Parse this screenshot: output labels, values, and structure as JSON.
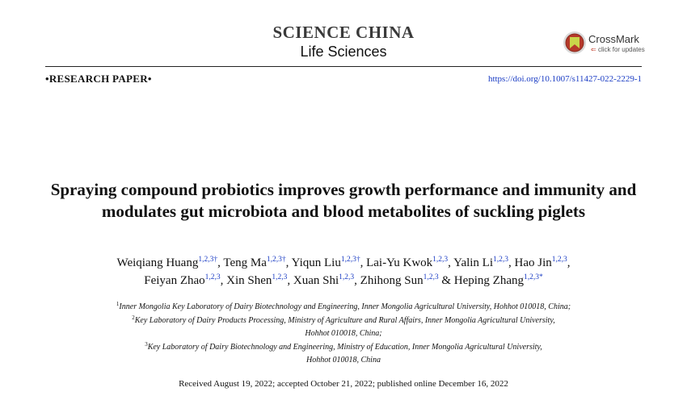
{
  "journal": {
    "name": "SCIENCE CHINA",
    "subtitle": "Life Sciences"
  },
  "crossmark": {
    "title": "CrossMark",
    "subtitle": "click for updates"
  },
  "paper_type": "•RESEARCH PAPER•",
  "doi": "https://doi.org/10.1007/s11427-022-2229-1",
  "title": "Spraying compound probiotics improves growth performance and immunity and modulates gut microbiota and blood metabolites of suckling piglets",
  "authors": [
    {
      "name": "Weiqiang Huang",
      "sup": "1,2,3†",
      "sep": ", "
    },
    {
      "name": "Teng Ma",
      "sup": "1,2,3†",
      "sep": ", "
    },
    {
      "name": "Yiqun Liu",
      "sup": "1,2,3†",
      "sep": ", "
    },
    {
      "name": "Lai-Yu Kwok",
      "sup": "1,2,3",
      "sep": ", "
    },
    {
      "name": "Yalin Li",
      "sup": "1,2,3",
      "sep": ", "
    },
    {
      "name": "Hao Jin",
      "sup": "1,2,3",
      "sep": ","
    },
    {
      "name": "Feiyan Zhao",
      "sup": "1,2,3",
      "sep": ", "
    },
    {
      "name": "Xin Shen",
      "sup": "1,2,3",
      "sep": ", "
    },
    {
      "name": "Xuan Shi",
      "sup": "1,2,3",
      "sep": ", "
    },
    {
      "name": "Zhihong Sun",
      "sup": "1,2,3",
      "sep": " & "
    },
    {
      "name": "Heping Zhang",
      "sup": "1,2,3*",
      "sep": ""
    }
  ],
  "affiliations": [
    {
      "num": "1",
      "text": "Inner Mongolia Key Laboratory of Dairy Biotechnology and Engineering, Inner Mongolia Agricultural University, Hohhot 010018, China;"
    },
    {
      "num": "2",
      "text": "Key Laboratory of Dairy Products Processing, Ministry of Agriculture and Rural Affairs, Inner Mongolia Agricultural University,"
    },
    {
      "num": "",
      "text": "Hohhot 010018, China;"
    },
    {
      "num": "3",
      "text": "Key Laboratory of Dairy Biotechnology and Engineering, Ministry of Education, Inner Mongolia Agricultural University,"
    },
    {
      "num": "",
      "text": "Hohhot 010018, China"
    }
  ],
  "dates": "Received August 19, 2022; accepted October 21, 2022; published online December 16, 2022",
  "colors": {
    "link": "#1a3cc4",
    "crossmark_red": "#c23b2a"
  }
}
